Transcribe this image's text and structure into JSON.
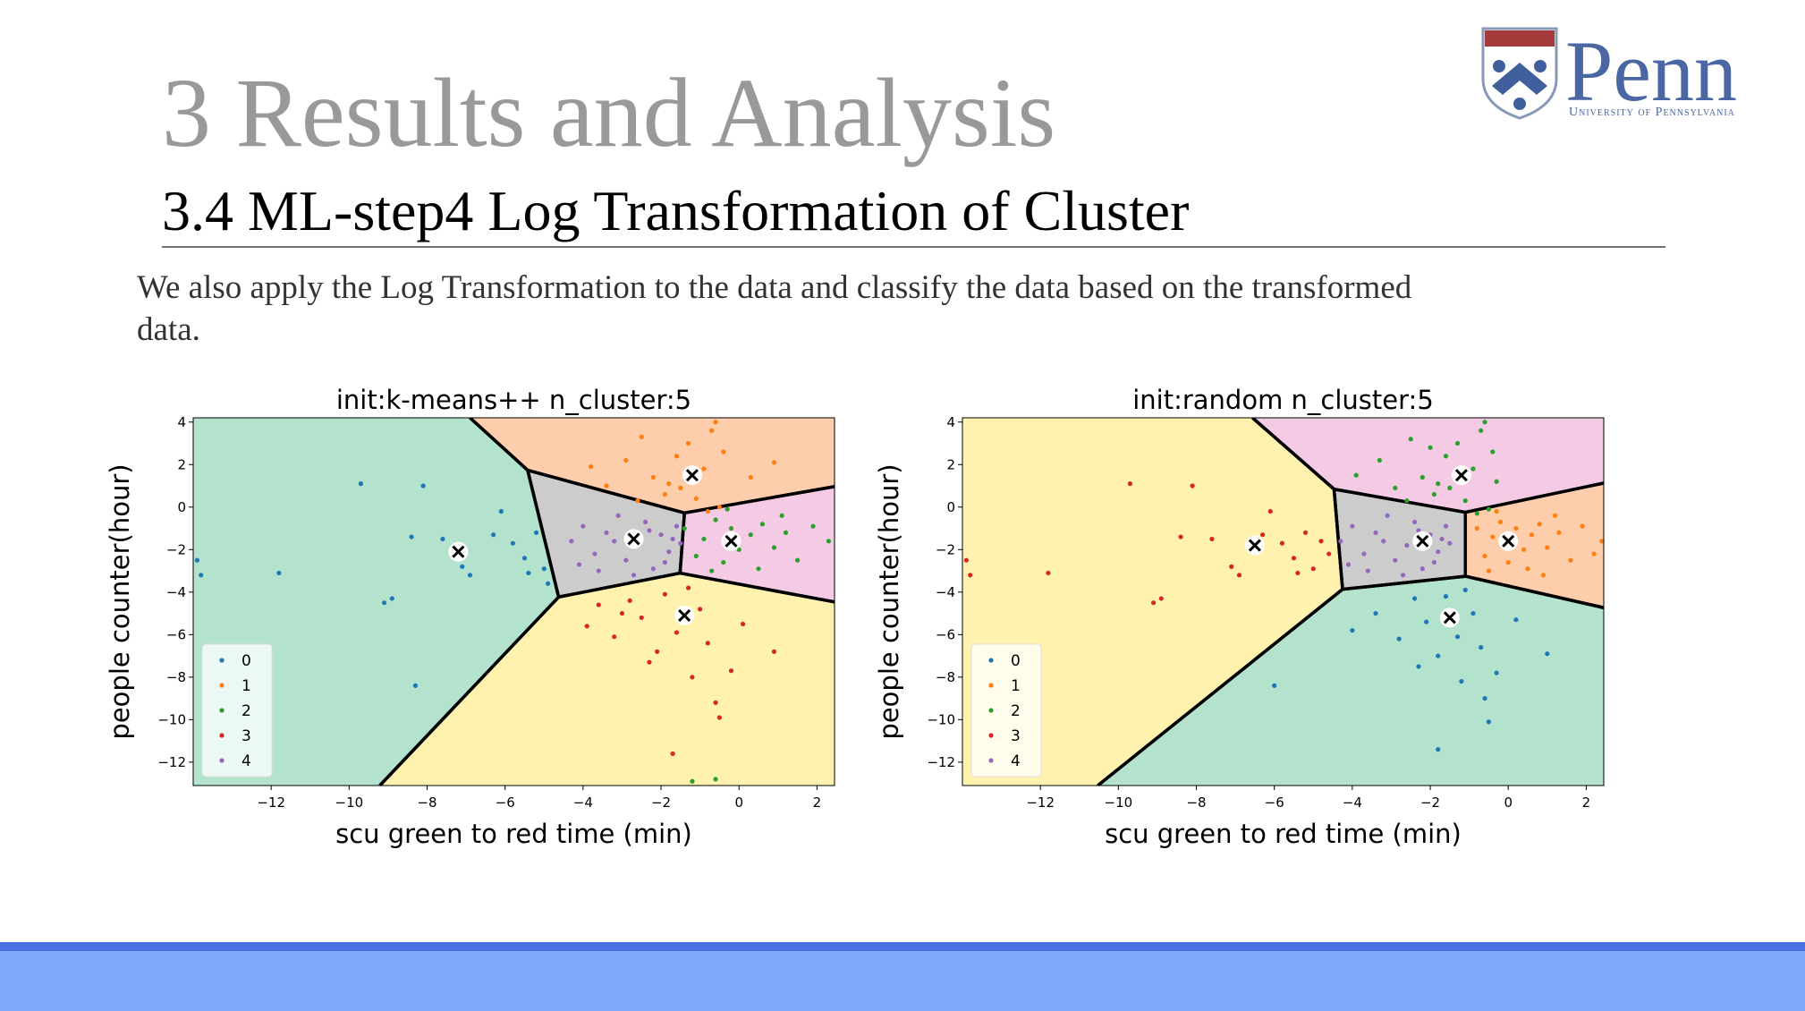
{
  "header": {
    "title": "3 Results and Analysis",
    "subtitle": "3.4 ML-step4 Log Transformation of Cluster"
  },
  "body": {
    "text": "We also apply the Log Transformation to the data and classify the data based on the transformed data."
  },
  "logo": {
    "name": "Penn",
    "subtitle": "University of Pennsylvania"
  },
  "chart_data": [
    {
      "type": "scatter",
      "title": "init:k-means++  n_cluster:5",
      "x_label": "scu green to red time (min)",
      "y_label": "people counter(hour)",
      "xlim": [
        -14,
        2.45
      ],
      "ylim": [
        -13.1,
        4.2
      ],
      "xticks": [
        {
          "value": -12,
          "label": "−12"
        },
        {
          "value": -10,
          "label": "−10"
        },
        {
          "value": -8,
          "label": "−8"
        },
        {
          "value": -6,
          "label": "−6"
        },
        {
          "value": -4,
          "label": "−4"
        },
        {
          "value": -2,
          "label": "−2"
        },
        0,
        2
      ],
      "yticks": [
        {
          "value": -12,
          "label": "−12"
        },
        {
          "value": -10,
          "label": "−10"
        },
        {
          "value": -8,
          "label": "−8"
        },
        {
          "value": -6,
          "label": "−6"
        },
        {
          "value": -4,
          "label": "−4"
        },
        {
          "value": -2,
          "label": "−2"
        },
        0,
        2,
        4
      ],
      "legend": "lower left",
      "region_colors": [
        "#b3e2cd",
        "#fdcdac",
        "#f4cae4",
        "#fff2ae",
        "#cccccc"
      ],
      "centroids": {
        "x": [
          -7.2,
          -1.2,
          -0.2,
          -1.4,
          -2.7
        ],
        "y": [
          -2.1,
          1.5,
          -1.6,
          -5.1,
          -1.5
        ]
      },
      "series": [
        {
          "name": "0",
          "color": "#1f77b4",
          "x": [
            -13.9,
            -13.8,
            -11.8,
            -9.7,
            -9.1,
            -8.9,
            -8.4,
            -8.1,
            -7.6,
            -7.1,
            -6.9,
            -6.3,
            -6.1,
            -5.8,
            -5.5,
            -5.2,
            -5.0,
            -4.9,
            -5.4,
            -8.3
          ],
          "values": [
            -2.5,
            -3.2,
            -3.1,
            1.1,
            -4.5,
            -4.3,
            -1.4,
            1.0,
            -1.5,
            -2.8,
            -3.2,
            -1.3,
            -0.2,
            -1.7,
            -2.4,
            -1.2,
            -2.9,
            -3.6,
            -3.1,
            -8.4
          ]
        },
        {
          "name": "1",
          "color": "#ff7f0e",
          "x": [
            -3.4,
            -2.9,
            -2.5,
            -2.2,
            -1.9,
            -1.6,
            -1.3,
            -1.1,
            -0.9,
            -0.7,
            -0.6,
            -0.5,
            -0.4,
            -2.6,
            -1.8,
            0.3,
            -3.8,
            -0.8,
            0.9,
            -1.5
          ],
          "values": [
            1.0,
            2.2,
            3.3,
            1.4,
            0.6,
            2.4,
            3.0,
            0.4,
            1.8,
            3.6,
            4.0,
            0.0,
            2.6,
            0.3,
            1.1,
            1.4,
            1.9,
            -0.2,
            2.1,
            0.9
          ]
        },
        {
          "name": "2",
          "color": "#2ca02c",
          "x": [
            -1.4,
            -1.1,
            -0.9,
            -0.6,
            -0.4,
            -0.2,
            0.0,
            0.3,
            0.6,
            0.9,
            1.2,
            1.5,
            1.9,
            2.3,
            -0.7,
            0.5,
            -1.2,
            -0.6,
            -0.3,
            1.1
          ],
          "values": [
            -1.0,
            -2.3,
            -1.5,
            -0.6,
            -2.6,
            -1.0,
            -2.0,
            -1.3,
            -0.8,
            -1.9,
            -1.2,
            -2.5,
            -0.9,
            -1.6,
            -3.0,
            -2.9,
            -12.9,
            -12.8,
            -0.1,
            -0.4
          ]
        },
        {
          "name": "3",
          "color": "#d62728",
          "x": [
            -3.9,
            -3.6,
            -3.2,
            -2.8,
            -2.5,
            -2.1,
            -1.9,
            -1.6,
            -1.3,
            -1.0,
            -0.8,
            -0.6,
            -0.5,
            -0.2,
            0.1,
            0.9,
            -1.2,
            -2.3,
            -3.0,
            -1.7
          ],
          "values": [
            -5.6,
            -4.6,
            -6.1,
            -4.4,
            -5.2,
            -6.8,
            -4.1,
            -5.9,
            -3.8,
            -4.8,
            -6.4,
            -9.2,
            -9.9,
            -7.7,
            -5.5,
            -6.8,
            -8.0,
            -7.3,
            -5.0,
            -11.6
          ]
        },
        {
          "name": "4",
          "color": "#9467bd",
          "x": [
            -4.3,
            -4.0,
            -3.7,
            -3.4,
            -3.1,
            -2.9,
            -2.6,
            -2.4,
            -2.2,
            -2.0,
            -1.8,
            -1.6,
            -1.5,
            -3.6,
            -2.7,
            -1.9,
            -4.1,
            -3.2,
            -2.3,
            -1.7
          ],
          "values": [
            -1.6,
            -0.9,
            -2.2,
            -1.2,
            -0.4,
            -2.5,
            -1.8,
            -0.7,
            -2.9,
            -1.3,
            -2.1,
            -0.9,
            -1.7,
            -3.0,
            -3.2,
            -2.6,
            -2.7,
            -1.6,
            -1.1,
            -1.5
          ]
        }
      ]
    },
    {
      "type": "scatter",
      "title": "init:random  n_cluster:5",
      "x_label": "scu green to red time (min)",
      "y_label": "people counter(hour)",
      "xlim": [
        -14,
        2.45
      ],
      "ylim": [
        -13.1,
        4.2
      ],
      "xticks": [
        {
          "value": -12,
          "label": "−12"
        },
        {
          "value": -10,
          "label": "−10"
        },
        {
          "value": -8,
          "label": "−8"
        },
        {
          "value": -6,
          "label": "−6"
        },
        {
          "value": -4,
          "label": "−4"
        },
        {
          "value": -2,
          "label": "−2"
        },
        0,
        2
      ],
      "yticks": [
        {
          "value": -12,
          "label": "−12"
        },
        {
          "value": -10,
          "label": "−10"
        },
        {
          "value": -8,
          "label": "−8"
        },
        {
          "value": -6,
          "label": "−6"
        },
        {
          "value": -4,
          "label": "−4"
        },
        {
          "value": -2,
          "label": "−2"
        },
        0,
        2,
        4
      ],
      "legend": "lower left",
      "region_colors": [
        "#b3e2cd",
        "#fdcdac",
        "#f4cae4",
        "#fff2ae",
        "#cccccc"
      ],
      "centroids": {
        "x": [
          -1.5,
          0.0,
          -1.2,
          -6.5,
          -2.2
        ],
        "y": [
          -5.2,
          -1.6,
          1.5,
          -1.8,
          -1.6
        ]
      },
      "series": [
        {
          "name": "0",
          "color": "#1f77b4",
          "x": [
            -4.0,
            -3.4,
            -2.8,
            -2.4,
            -2.1,
            -1.8,
            -1.6,
            -1.3,
            -1.1,
            -0.9,
            -0.7,
            -0.6,
            -0.5,
            -0.3,
            0.2,
            1.0,
            -1.2,
            -2.3,
            -6.0,
            -1.8
          ],
          "values": [
            -5.8,
            -5.0,
            -6.2,
            -4.3,
            -5.4,
            -7.0,
            -4.2,
            -6.1,
            -3.9,
            -5.0,
            -6.6,
            -9.0,
            -10.1,
            -7.8,
            -5.3,
            -6.9,
            -8.2,
            -7.5,
            -8.4,
            -11.4
          ]
        },
        {
          "name": "1",
          "color": "#ff7f0e",
          "x": [
            -0.8,
            -0.6,
            -0.4,
            -0.2,
            0.0,
            0.2,
            0.4,
            0.6,
            0.8,
            1.0,
            1.3,
            1.6,
            1.9,
            2.4,
            -0.5,
            0.5,
            1.2,
            -0.3,
            2.2,
            0.9
          ],
          "values": [
            -1.0,
            -2.3,
            -1.4,
            -0.7,
            -2.6,
            -1.0,
            -2.0,
            -1.3,
            -0.8,
            -1.9,
            -1.2,
            -2.5,
            -0.9,
            -1.6,
            -3.0,
            -2.9,
            -0.4,
            -0.2,
            -2.2,
            -3.2
          ]
        },
        {
          "name": "2",
          "color": "#2ca02c",
          "x": [
            -3.9,
            -3.3,
            -2.9,
            -2.5,
            -2.2,
            -1.9,
            -1.6,
            -1.3,
            -1.1,
            -0.9,
            -0.7,
            -0.6,
            -0.5,
            -0.4,
            -2.6,
            -1.8,
            -0.8,
            -1.5,
            -0.3,
            -2.0
          ],
          "values": [
            1.5,
            2.2,
            0.9,
            3.2,
            1.4,
            0.6,
            2.4,
            3.0,
            0.3,
            1.8,
            3.6,
            4.0,
            -0.1,
            2.6,
            0.3,
            1.1,
            -0.3,
            0.9,
            1.2,
            2.8
          ]
        },
        {
          "name": "3",
          "color": "#d62728",
          "x": [
            -13.9,
            -13.8,
            -11.8,
            -9.7,
            -9.1,
            -8.9,
            -8.4,
            -8.1,
            -7.6,
            -7.1,
            -6.9,
            -6.3,
            -6.1,
            -5.8,
            -5.5,
            -5.2,
            -5.0,
            -4.8,
            -5.4,
            -4.6
          ],
          "values": [
            -2.5,
            -3.2,
            -3.1,
            1.1,
            -4.5,
            -4.3,
            -1.4,
            1.0,
            -1.5,
            -2.8,
            -3.2,
            -1.3,
            -0.2,
            -1.7,
            -2.4,
            -1.2,
            -2.9,
            -1.6,
            -3.1,
            -2.2
          ]
        },
        {
          "name": "4",
          "color": "#9467bd",
          "x": [
            -4.3,
            -4.0,
            -3.7,
            -3.4,
            -3.1,
            -2.9,
            -2.6,
            -2.4,
            -2.2,
            -2.0,
            -1.8,
            -1.6,
            -1.5,
            -3.6,
            -2.7,
            -1.9,
            -4.1,
            -3.2,
            -2.3,
            -1.7
          ],
          "values": [
            -1.6,
            -0.9,
            -2.2,
            -1.2,
            -0.4,
            -2.5,
            -1.8,
            -0.7,
            -2.9,
            -1.3,
            -2.1,
            -0.9,
            -1.7,
            -3.0,
            -3.2,
            -2.6,
            -2.7,
            -1.6,
            -1.1,
            -1.5
          ]
        }
      ]
    }
  ]
}
